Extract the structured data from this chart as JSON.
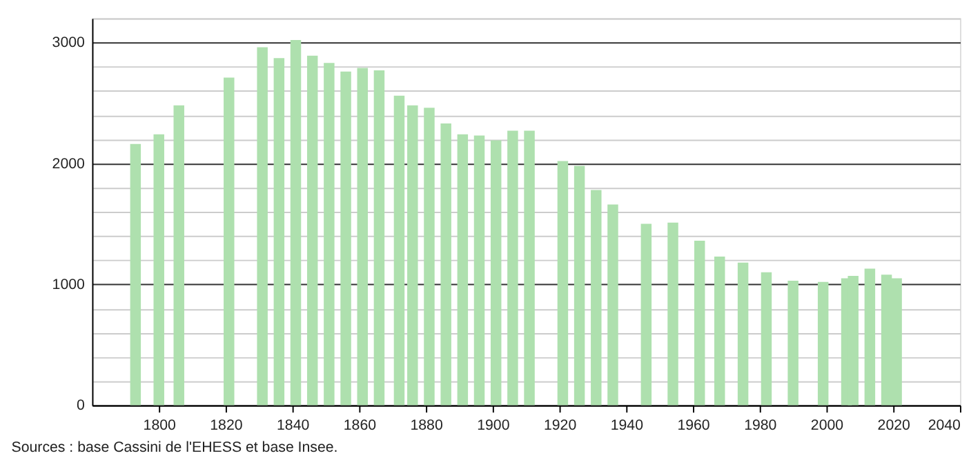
{
  "chart_data": {
    "type": "bar",
    "color": "#aee0ae",
    "x": [
      1793,
      1800,
      1806,
      1821,
      1831,
      1836,
      1841,
      1846,
      1851,
      1856,
      1861,
      1866,
      1872,
      1876,
      1881,
      1886,
      1891,
      1896,
      1901,
      1906,
      1911,
      1921,
      1926,
      1931,
      1936,
      1946,
      1954,
      1962,
      1968,
      1975,
      1982,
      1990,
      1999,
      2006,
      2008,
      2013,
      2018,
      2021
    ],
    "values": [
      2160,
      2240,
      2480,
      2710,
      2960,
      2870,
      3020,
      2890,
      2830,
      2760,
      2790,
      2770,
      2560,
      2480,
      2460,
      2330,
      2240,
      2230,
      2190,
      2270,
      2270,
      2020,
      1980,
      1780,
      1660,
      1500,
      1510,
      1360,
      1230,
      1180,
      1100,
      1030,
      1020,
      1050,
      1070,
      1130,
      1080,
      1050
    ],
    "xlim": [
      1780,
      2040
    ],
    "xticks": [
      1800,
      1820,
      1840,
      1860,
      1880,
      1900,
      1920,
      1940,
      1960,
      1980,
      2000,
      2020,
      2040
    ],
    "ylim": [
      0,
      3200
    ],
    "yticks": [
      0,
      {
        "value": 200,
        "label": null
      },
      {
        "value": 400,
        "label": null
      },
      {
        "value": 600,
        "label": null
      },
      {
        "value": 800,
        "label": null
      },
      1000,
      {
        "value": 1200,
        "label": null
      },
      {
        "value": 1400,
        "label": null
      },
      {
        "value": 1600,
        "label": null
      },
      {
        "value": 1800,
        "label": null
      },
      2000,
      {
        "value": 2200,
        "label": null
      },
      {
        "value": 2400,
        "label": null
      },
      {
        "value": 2600,
        "label": null
      },
      {
        "value": 2800,
        "label": null
      },
      3000,
      {
        "value": 3200,
        "label": null
      }
    ],
    "grid": "y",
    "annotations": [
      "Sources : base Cassini de l'EHESS et base Insee."
    ]
  }
}
